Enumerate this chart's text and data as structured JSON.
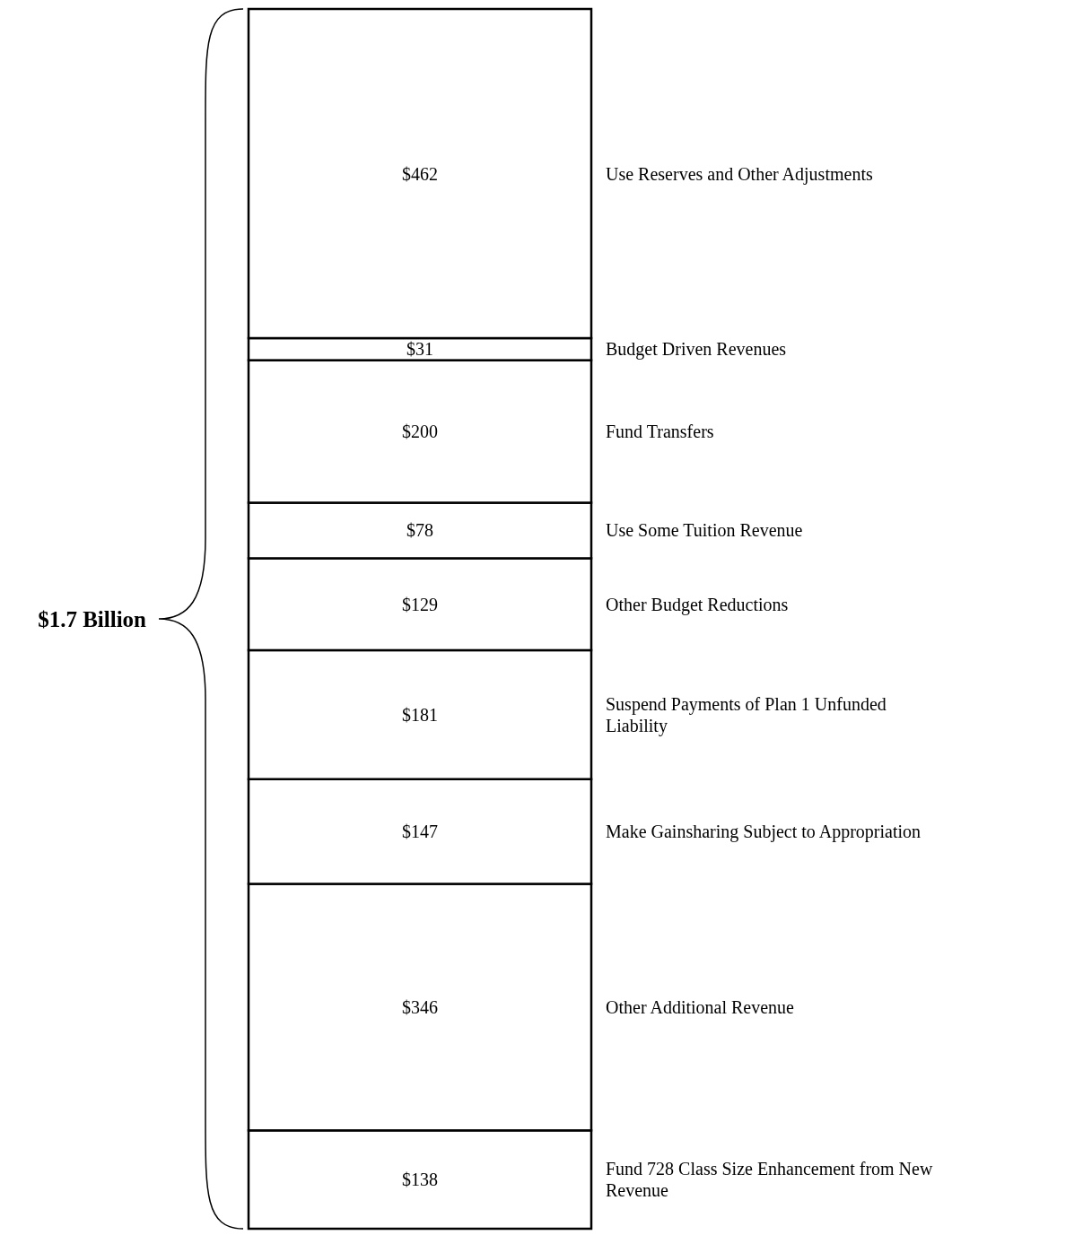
{
  "chart_data": {
    "type": "bar",
    "stacked": true,
    "categories": [
      null
    ],
    "annotations": [
      "$1.7 Billion"
    ],
    "series": [
      {
        "name": "Fund 728 Class Size Enhancement from New Revenue",
        "color": "#ffffff",
        "values": [
          138
        ],
        "value_labels": [
          "$138"
        ]
      },
      {
        "name": "Other Additional Revenue",
        "color": "#ffffff",
        "values": [
          346
        ],
        "value_labels": [
          "$346"
        ]
      },
      {
        "name": "Make Gainsharing Subject to Appropriation",
        "color": "#ffffff",
        "values": [
          147
        ],
        "value_labels": [
          "$147"
        ]
      },
      {
        "name": "Suspend Payments of Plan 1 Unfunded Liability",
        "color": "#ffffff",
        "values": [
          181
        ],
        "value_labels": [
          "$181"
        ]
      },
      {
        "name": "Other Budget Reductions",
        "color": "#ffffff",
        "values": [
          129
        ],
        "value_labels": [
          "$129"
        ]
      },
      {
        "name": "Use Some Tuition Revenue",
        "color": "#ffffff",
        "values": [
          78
        ],
        "value_labels": [
          "$78"
        ]
      },
      {
        "name": "Fund Transfers",
        "color": "#ffffff",
        "values": [
          200
        ],
        "value_labels": [
          "$200"
        ]
      },
      {
        "name": "Budget Driven Revenues",
        "color": "#ffffff",
        "values": [
          31
        ],
        "value_labels": [
          "$31"
        ]
      },
      {
        "name": "Use Reserves and Other Adjustments",
        "color": "#ffffff",
        "values": [
          462
        ],
        "value_labels": [
          "$462"
        ]
      }
    ]
  }
}
